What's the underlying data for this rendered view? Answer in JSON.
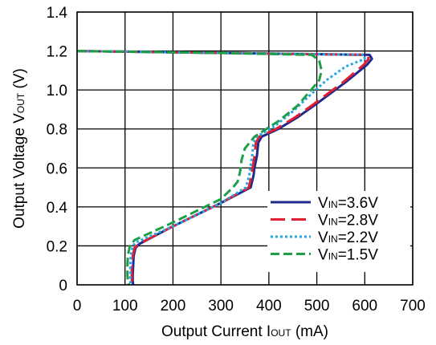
{
  "chart_data": {
    "type": "line",
    "xlabel": {
      "main": "Output Current I",
      "sub": "OUT",
      "suffix": " (mA)"
    },
    "ylabel": {
      "main": "Output Voltage V",
      "sub": "OUT",
      "suffix": " (V)"
    },
    "xlim": [
      0,
      700
    ],
    "ylim": [
      0,
      1.4
    ],
    "x_ticks": [
      0,
      100,
      200,
      300,
      400,
      500,
      600,
      700
    ],
    "y_ticks": [
      0,
      0.2,
      0.4,
      0.6,
      0.8,
      1.0,
      1.2,
      1.4
    ],
    "x_tick_labels": [
      "0",
      "100",
      "200",
      "300",
      "400",
      "500",
      "600",
      "700"
    ],
    "y_tick_labels": [
      "0",
      "0.2",
      "0.4",
      "0.6",
      "0.8",
      "1.0",
      "1.2",
      "1.4"
    ],
    "grid": true,
    "legend_position": "lower-right",
    "series": [
      {
        "label_main": "V",
        "label_sub": "IN",
        "label_suffix": "=3.6V",
        "color": "#1f2a8c",
        "dash": "solid",
        "x": [
          0,
          300,
          610,
          615,
          605,
          560,
          500,
          460,
          420,
          385,
          378,
          375,
          370,
          368,
          362,
          300,
          200,
          130,
          122,
          118,
          117,
          116,
          116,
          117
        ],
        "y": [
          1.2,
          1.19,
          1.18,
          1.16,
          1.13,
          1.04,
          0.93,
          0.86,
          0.8,
          0.76,
          0.73,
          0.66,
          0.6,
          0.56,
          0.5,
          0.42,
          0.3,
          0.21,
          0.19,
          0.15,
          0.1,
          0.05,
          0.02,
          0.0
        ]
      },
      {
        "label_main": "V",
        "label_sub": "IN",
        "label_suffix": "=2.8V",
        "color": "#e02030",
        "dash": "long",
        "x": [
          0,
          300,
          605,
          608,
          598,
          555,
          495,
          455,
          415,
          380,
          373,
          370,
          366,
          364,
          358,
          300,
          200,
          128,
          120,
          116,
          114,
          114,
          114,
          115
        ],
        "y": [
          1.2,
          1.19,
          1.18,
          1.16,
          1.13,
          1.04,
          0.93,
          0.86,
          0.8,
          0.76,
          0.73,
          0.66,
          0.6,
          0.56,
          0.5,
          0.42,
          0.3,
          0.21,
          0.19,
          0.15,
          0.1,
          0.05,
          0.02,
          0.0
        ]
      },
      {
        "label_main": "V",
        "label_sub": "IN",
        "label_suffix": "=2.2V",
        "color": "#22a8e6",
        "dash": "dot",
        "x": [
          0,
          300,
          598,
          600,
          560,
          520,
          480,
          450,
          410,
          375,
          368,
          365,
          361,
          359,
          352,
          300,
          200,
          124,
          116,
          112,
          111,
          111,
          111,
          112
        ],
        "y": [
          1.2,
          1.19,
          1.18,
          1.16,
          1.12,
          1.05,
          0.96,
          0.89,
          0.81,
          0.76,
          0.73,
          0.66,
          0.6,
          0.56,
          0.5,
          0.42,
          0.3,
          0.22,
          0.2,
          0.15,
          0.1,
          0.05,
          0.02,
          0.0
        ]
      },
      {
        "label_main": "V",
        "label_sub": "IN",
        "label_suffix": "=1.5V",
        "color": "#1f9e4a",
        "dash": "dash",
        "x": [
          0,
          300,
          490,
          505,
          510,
          505,
          488,
          460,
          420,
          370,
          350,
          343,
          340,
          335,
          325,
          300,
          200,
          120,
          110,
          106,
          105,
          105,
          106,
          108
        ],
        "y": [
          1.2,
          1.19,
          1.18,
          1.15,
          1.1,
          1.05,
          1.0,
          0.92,
          0.84,
          0.76,
          0.7,
          0.64,
          0.58,
          0.53,
          0.5,
          0.44,
          0.32,
          0.23,
          0.2,
          0.15,
          0.1,
          0.05,
          0.02,
          0.0
        ]
      }
    ]
  }
}
